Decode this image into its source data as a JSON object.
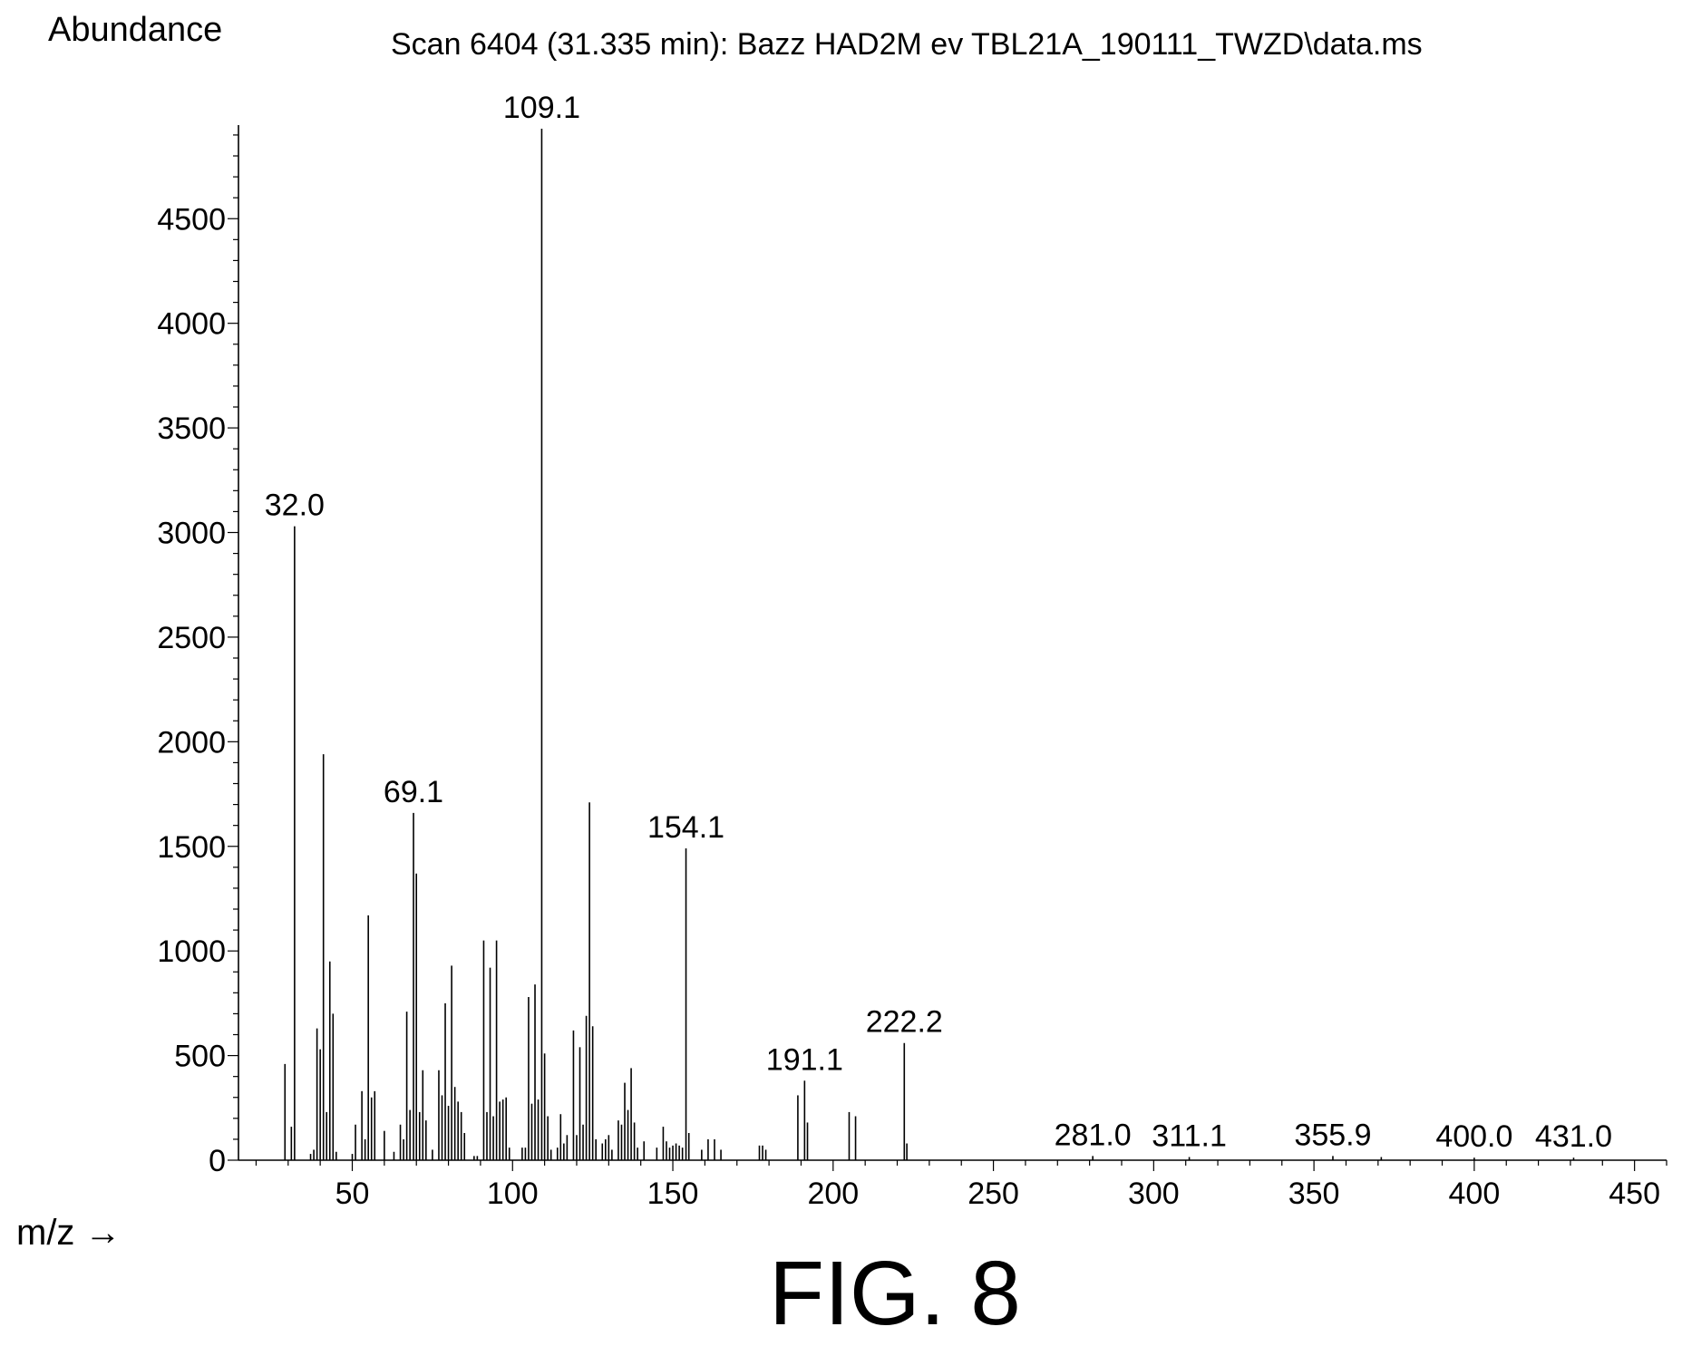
{
  "figure_label": "FIG. 8",
  "chart_data": {
    "type": "bar",
    "title": "Scan 6404 (31.335 min): Bazz HAD2M ev TBL21A_190111_TWZD\\data.ms",
    "ylabel": "Abundance",
    "xlabel": "m/z →",
    "xlim": [
      14.5,
      460
    ],
    "ylim": [
      0,
      4930
    ],
    "x_ticks": [
      50,
      100,
      150,
      200,
      250,
      300,
      350,
      400,
      450
    ],
    "y_ticks": [
      0,
      500,
      1000,
      1500,
      2000,
      2500,
      3000,
      3500,
      4000,
      4500
    ],
    "peaks": [
      {
        "mz": 29,
        "abundance": 460
      },
      {
        "mz": 31,
        "abundance": 160
      },
      {
        "mz": 32.0,
        "abundance": 3030
      },
      {
        "mz": 37,
        "abundance": 30
      },
      {
        "mz": 38,
        "abundance": 50
      },
      {
        "mz": 39,
        "abundance": 630
      },
      {
        "mz": 40,
        "abundance": 530
      },
      {
        "mz": 41,
        "abundance": 1940
      },
      {
        "mz": 42,
        "abundance": 230
      },
      {
        "mz": 43,
        "abundance": 950
      },
      {
        "mz": 44,
        "abundance": 700
      },
      {
        "mz": 45,
        "abundance": 40
      },
      {
        "mz": 50,
        "abundance": 30
      },
      {
        "mz": 51,
        "abundance": 170
      },
      {
        "mz": 53,
        "abundance": 330
      },
      {
        "mz": 54,
        "abundance": 100
      },
      {
        "mz": 55,
        "abundance": 1170
      },
      {
        "mz": 56,
        "abundance": 300
      },
      {
        "mz": 57,
        "abundance": 330
      },
      {
        "mz": 60,
        "abundance": 140
      },
      {
        "mz": 63,
        "abundance": 40
      },
      {
        "mz": 65,
        "abundance": 170
      },
      {
        "mz": 66,
        "abundance": 100
      },
      {
        "mz": 67,
        "abundance": 710
      },
      {
        "mz": 68,
        "abundance": 240
      },
      {
        "mz": 69.1,
        "abundance": 1660
      },
      {
        "mz": 70,
        "abundance": 1370
      },
      {
        "mz": 71,
        "abundance": 230
      },
      {
        "mz": 72,
        "abundance": 430
      },
      {
        "mz": 73,
        "abundance": 190
      },
      {
        "mz": 75,
        "abundance": 50
      },
      {
        "mz": 77,
        "abundance": 430
      },
      {
        "mz": 78,
        "abundance": 310
      },
      {
        "mz": 79,
        "abundance": 750
      },
      {
        "mz": 80,
        "abundance": 260
      },
      {
        "mz": 81,
        "abundance": 930
      },
      {
        "mz": 82,
        "abundance": 350
      },
      {
        "mz": 83,
        "abundance": 280
      },
      {
        "mz": 84,
        "abundance": 230
      },
      {
        "mz": 85,
        "abundance": 130
      },
      {
        "mz": 88,
        "abundance": 20
      },
      {
        "mz": 89,
        "abundance": 20
      },
      {
        "mz": 91,
        "abundance": 1050
      },
      {
        "mz": 92,
        "abundance": 230
      },
      {
        "mz": 93,
        "abundance": 920
      },
      {
        "mz": 94,
        "abundance": 210
      },
      {
        "mz": 95,
        "abundance": 1050
      },
      {
        "mz": 96,
        "abundance": 280
      },
      {
        "mz": 97,
        "abundance": 290
      },
      {
        "mz": 98,
        "abundance": 300
      },
      {
        "mz": 99,
        "abundance": 60
      },
      {
        "mz": 103,
        "abundance": 60
      },
      {
        "mz": 104,
        "abundance": 60
      },
      {
        "mz": 105,
        "abundance": 780
      },
      {
        "mz": 106,
        "abundance": 270
      },
      {
        "mz": 107,
        "abundance": 840
      },
      {
        "mz": 108,
        "abundance": 290
      },
      {
        "mz": 109.1,
        "abundance": 4930
      },
      {
        "mz": 110,
        "abundance": 510
      },
      {
        "mz": 111,
        "abundance": 210
      },
      {
        "mz": 112,
        "abundance": 50
      },
      {
        "mz": 114,
        "abundance": 60
      },
      {
        "mz": 115,
        "abundance": 220
      },
      {
        "mz": 116,
        "abundance": 80
      },
      {
        "mz": 117,
        "abundance": 120
      },
      {
        "mz": 119,
        "abundance": 620
      },
      {
        "mz": 120,
        "abundance": 120
      },
      {
        "mz": 121,
        "abundance": 540
      },
      {
        "mz": 122,
        "abundance": 170
      },
      {
        "mz": 123,
        "abundance": 690
      },
      {
        "mz": 124,
        "abundance": 1710
      },
      {
        "mz": 125,
        "abundance": 640
      },
      {
        "mz": 126,
        "abundance": 100
      },
      {
        "mz": 128,
        "abundance": 80
      },
      {
        "mz": 129,
        "abundance": 100
      },
      {
        "mz": 130,
        "abundance": 120
      },
      {
        "mz": 131,
        "abundance": 50
      },
      {
        "mz": 133,
        "abundance": 190
      },
      {
        "mz": 134,
        "abundance": 170
      },
      {
        "mz": 135,
        "abundance": 370
      },
      {
        "mz": 136,
        "abundance": 240
      },
      {
        "mz": 137,
        "abundance": 440
      },
      {
        "mz": 138,
        "abundance": 180
      },
      {
        "mz": 139,
        "abundance": 60
      },
      {
        "mz": 141,
        "abundance": 90
      },
      {
        "mz": 145,
        "abundance": 60
      },
      {
        "mz": 147,
        "abundance": 160
      },
      {
        "mz": 148,
        "abundance": 90
      },
      {
        "mz": 149,
        "abundance": 60
      },
      {
        "mz": 150,
        "abundance": 70
      },
      {
        "mz": 151,
        "abundance": 80
      },
      {
        "mz": 152,
        "abundance": 70
      },
      {
        "mz": 153,
        "abundance": 60
      },
      {
        "mz": 154.1,
        "abundance": 1490
      },
      {
        "mz": 155,
        "abundance": 130
      },
      {
        "mz": 159,
        "abundance": 50
      },
      {
        "mz": 161,
        "abundance": 100
      },
      {
        "mz": 163,
        "abundance": 100
      },
      {
        "mz": 165,
        "abundance": 50
      },
      {
        "mz": 177,
        "abundance": 70
      },
      {
        "mz": 178,
        "abundance": 70
      },
      {
        "mz": 179,
        "abundance": 50
      },
      {
        "mz": 189,
        "abundance": 310
      },
      {
        "mz": 191.1,
        "abundance": 380
      },
      {
        "mz": 192,
        "abundance": 180
      },
      {
        "mz": 205,
        "abundance": 230
      },
      {
        "mz": 207,
        "abundance": 210
      },
      {
        "mz": 222.2,
        "abundance": 560
      },
      {
        "mz": 223,
        "abundance": 80
      },
      {
        "mz": 281.0,
        "abundance": 20
      },
      {
        "mz": 311.1,
        "abundance": 15
      },
      {
        "mz": 355.9,
        "abundance": 20
      },
      {
        "mz": 371,
        "abundance": 15
      },
      {
        "mz": 400.0,
        "abundance": 12
      },
      {
        "mz": 431.0,
        "abundance": 12
      }
    ],
    "peak_labels": [
      {
        "mz": 32.0,
        "abundance": 3030,
        "text": "32.0"
      },
      {
        "mz": 69.1,
        "abundance": 1660,
        "text": "69.1"
      },
      {
        "mz": 109.1,
        "abundance": 4930,
        "text": "109.1"
      },
      {
        "mz": 154.1,
        "abundance": 1490,
        "text": "154.1"
      },
      {
        "mz": 191.1,
        "abundance": 380,
        "text": "191.1"
      },
      {
        "mz": 222.2,
        "abundance": 560,
        "text": "222.2"
      },
      {
        "mz": 281.0,
        "abundance": 20,
        "text": "281.0"
      },
      {
        "mz": 311.1,
        "abundance": 15,
        "text": "311.1"
      },
      {
        "mz": 355.9,
        "abundance": 20,
        "text": "355.9"
      },
      {
        "mz": 400.0,
        "abundance": 12,
        "text": "400.0"
      },
      {
        "mz": 431.0,
        "abundance": 12,
        "text": "431.0"
      }
    ]
  }
}
